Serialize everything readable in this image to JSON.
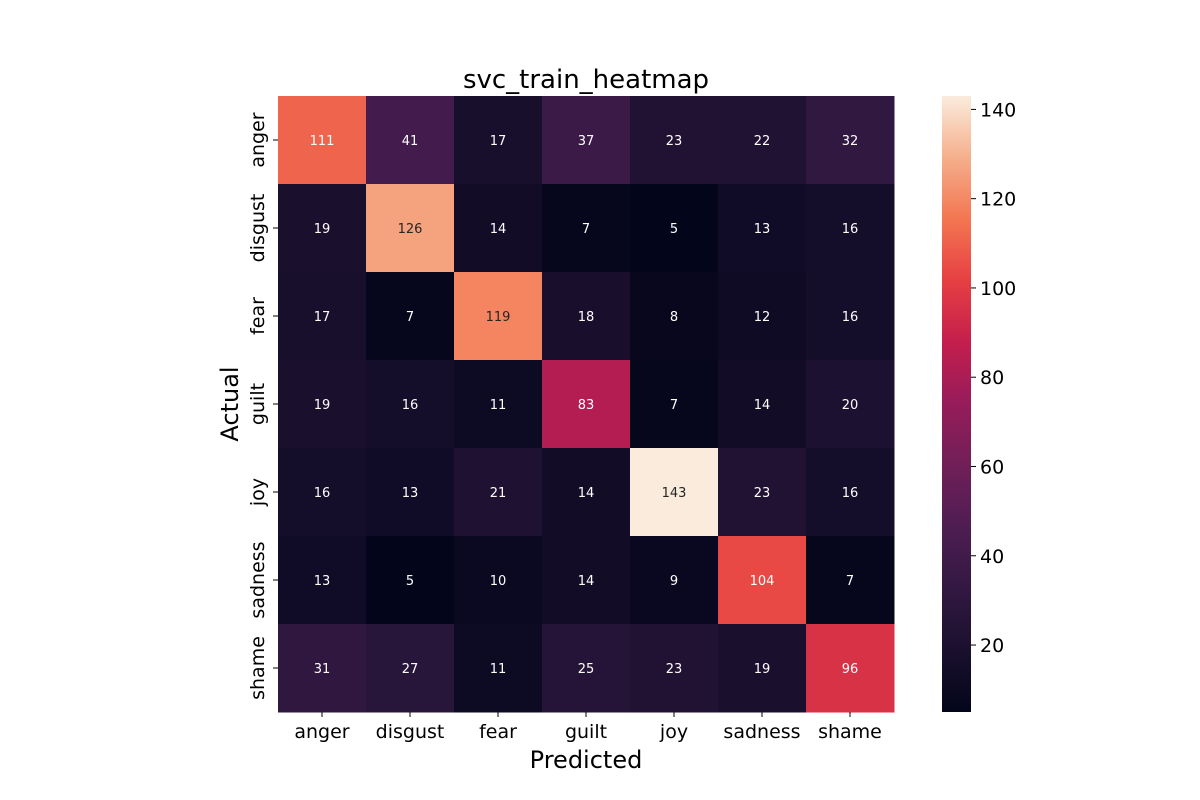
{
  "chart_data": {
    "type": "heatmap",
    "title": "svc_train_heatmap",
    "xlabel": "Predicted",
    "ylabel": "Actual",
    "x_categories": [
      "anger",
      "disgust",
      "fear",
      "guilt",
      "joy",
      "sadness",
      "shame"
    ],
    "y_categories": [
      "anger",
      "disgust",
      "fear",
      "guilt",
      "joy",
      "sadness",
      "shame"
    ],
    "values": [
      [
        111,
        41,
        17,
        37,
        23,
        22,
        32
      ],
      [
        19,
        126,
        14,
        7,
        5,
        13,
        16
      ],
      [
        17,
        7,
        119,
        18,
        8,
        12,
        16
      ],
      [
        19,
        16,
        11,
        83,
        7,
        14,
        20
      ],
      [
        16,
        13,
        21,
        14,
        143,
        23,
        16
      ],
      [
        13,
        5,
        10,
        14,
        9,
        104,
        7
      ],
      [
        31,
        27,
        11,
        25,
        23,
        19,
        96
      ]
    ],
    "colorbar": {
      "min": 5,
      "max": 143,
      "ticks": [
        20,
        40,
        60,
        80,
        100,
        120,
        140
      ],
      "colormap": "rocket"
    }
  }
}
